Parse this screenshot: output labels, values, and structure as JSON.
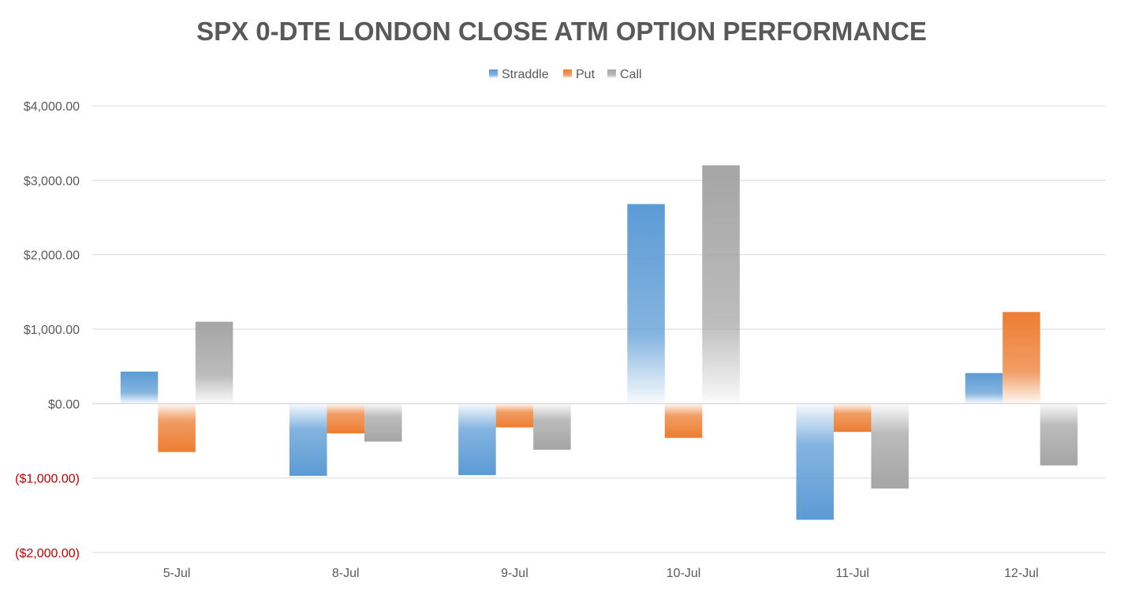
{
  "chart_data": {
    "type": "bar",
    "title": "SPX 0-DTE  LONDON CLOSE ATM OPTION PERFORMANCE",
    "xlabel": "",
    "ylabel": "",
    "categories": [
      "5-Jul",
      "8-Jul",
      "9-Jul",
      "10-Jul",
      "11-Jul",
      "12-Jul"
    ],
    "series": [
      {
        "name": "Straddle",
        "color": "#5B9BD5",
        "values": [
          430,
          -970,
          -960,
          2680,
          -1560,
          410
        ]
      },
      {
        "name": "Put",
        "color": "#ED7D31",
        "values": [
          -650,
          -400,
          -320,
          -460,
          -380,
          1230
        ]
      },
      {
        "name": "Call",
        "color": "#A5A5A5",
        "values": [
          1100,
          -510,
          -620,
          3200,
          -1140,
          -830
        ]
      }
    ],
    "ylim": [
      -2000,
      4000
    ],
    "yticks": [
      {
        "value": 4000,
        "label": "$4,000.00",
        "color": "#595959"
      },
      {
        "value": 3000,
        "label": "$3,000.00",
        "color": "#595959"
      },
      {
        "value": 2000,
        "label": "$2,000.00",
        "color": "#595959"
      },
      {
        "value": 1000,
        "label": "$1,000.00",
        "color": "#595959"
      },
      {
        "value": 0,
        "label": "$0.00",
        "color": "#595959"
      },
      {
        "value": -1000,
        "label": "($1,000.00)",
        "color": "#C00000"
      },
      {
        "value": -2000,
        "label": "($2,000.00)",
        "color": "#C00000"
      }
    ],
    "grid": true,
    "legend_position": "top"
  }
}
